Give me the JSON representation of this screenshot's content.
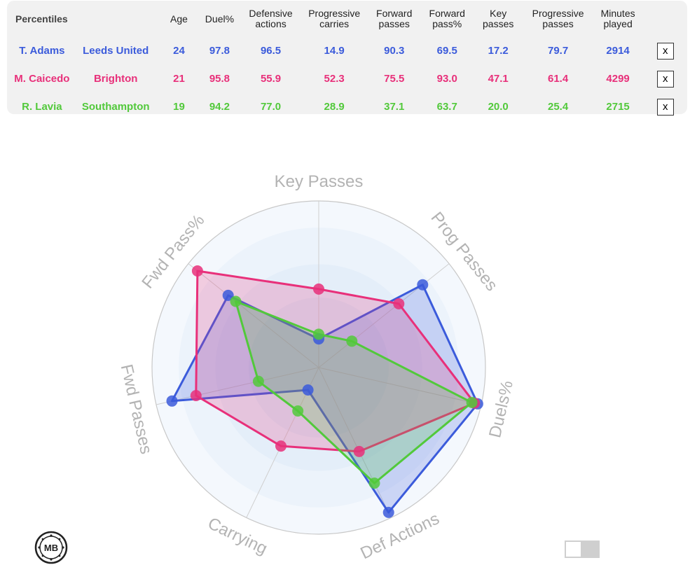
{
  "table": {
    "title": "Percentiles",
    "columns": [
      "Age",
      "Duel%",
      "Defensive actions",
      "Progressive carries",
      "Forward passes",
      "Forward pass%",
      "Key passes",
      "Progressive passes",
      "Minutes played"
    ],
    "remove_label": "x",
    "rows": [
      {
        "player": "T. Adams",
        "team": "Leeds United",
        "color": "#3b5bdb",
        "values": [
          "24",
          "97.8",
          "96.5",
          "14.9",
          "90.3",
          "69.5",
          "17.2",
          "79.7",
          "2914"
        ]
      },
      {
        "player": "M. Caicedo",
        "team": "Brighton",
        "color": "#e8307a",
        "values": [
          "21",
          "95.8",
          "55.9",
          "52.3",
          "75.5",
          "93.0",
          "47.1",
          "61.4",
          "4299"
        ]
      },
      {
        "player": "R. Lavia",
        "team": "Southampton",
        "color": "#52c93b",
        "values": [
          "19",
          "94.2",
          "77.0",
          "28.9",
          "37.1",
          "63.7",
          "20.0",
          "25.4",
          "2715"
        ]
      }
    ]
  },
  "chart_data": {
    "type": "radar",
    "axes": [
      "Key Passes",
      "Prog Passes",
      "Duels%",
      "Def Actions",
      "Carrying",
      "Fwd Passes",
      "Fwd Pass%"
    ],
    "range": [
      0,
      100
    ],
    "grid": true,
    "series": [
      {
        "name": "T. Adams",
        "color": "#3b5bdb",
        "values": [
          17.2,
          79.7,
          97.8,
          96.5,
          14.9,
          90.3,
          69.5
        ]
      },
      {
        "name": "M. Caicedo",
        "color": "#e8307a",
        "values": [
          47.1,
          61.4,
          95.8,
          55.9,
          52.3,
          75.5,
          93.0
        ]
      },
      {
        "name": "R. Lavia",
        "color": "#52c93b",
        "values": [
          20.0,
          25.4,
          94.2,
          77.0,
          28.9,
          37.1,
          63.7
        ]
      }
    ]
  },
  "footer": {
    "logo_text": "MB",
    "logo_icon": "mb-logo-icon",
    "toggle_state": "off"
  }
}
